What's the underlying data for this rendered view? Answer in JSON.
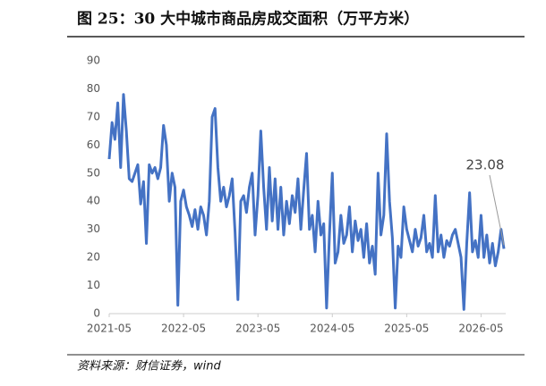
{
  "chart_data": {
    "type": "line",
    "title": "图 25：30 大中城市商品房成交面积（万平方米）",
    "source": "资料来源：财信证券，wind",
    "color": "#4472c4",
    "values": [
      55,
      68,
      62,
      75,
      52,
      78,
      65,
      48,
      47,
      50,
      53,
      39,
      47,
      25,
      53,
      50,
      52,
      48,
      52,
      67,
      60,
      40,
      50,
      45,
      3,
      40,
      44,
      38,
      35,
      31,
      37,
      30,
      38,
      35,
      28,
      40,
      70,
      73,
      52,
      40,
      45,
      38,
      42,
      48,
      29,
      5,
      40,
      42,
      36,
      45,
      50,
      28,
      42,
      65,
      45,
      30,
      52,
      33,
      48,
      30,
      45,
      28,
      40,
      32,
      42,
      36,
      48,
      30,
      44,
      57,
      30,
      35,
      22,
      40,
      28,
      32,
      2,
      28,
      50,
      18,
      22,
      35,
      25,
      28,
      38,
      22,
      33,
      26,
      30,
      20,
      32,
      18,
      24,
      14,
      50,
      28,
      35,
      64,
      40,
      27,
      2,
      24,
      20,
      38,
      30,
      26,
      22,
      30,
      24,
      27,
      35,
      22,
      25,
      20,
      42,
      22,
      28,
      20,
      26,
      24,
      28,
      30,
      25,
      20,
      1.5,
      25,
      43,
      22,
      26,
      20,
      35,
      20,
      28,
      18,
      25,
      17,
      22,
      30,
      23.08
    ],
    "xlim": [
      0,
      138
    ],
    "xticks": [
      {
        "value": 0,
        "label": "2021-05"
      },
      {
        "value": 26,
        "label": "2022-05"
      },
      {
        "value": 52,
        "label": "2023-05"
      },
      {
        "value": 78,
        "label": "2024-05"
      },
      {
        "value": 104,
        "label": "2025-05"
      },
      {
        "value": 130,
        "label": "2026-05"
      }
    ],
    "ylim": [
      0,
      90
    ],
    "yticks": [
      0,
      10,
      20,
      30,
      40,
      50,
      60,
      70,
      80,
      90
    ],
    "grid": false
  }
}
